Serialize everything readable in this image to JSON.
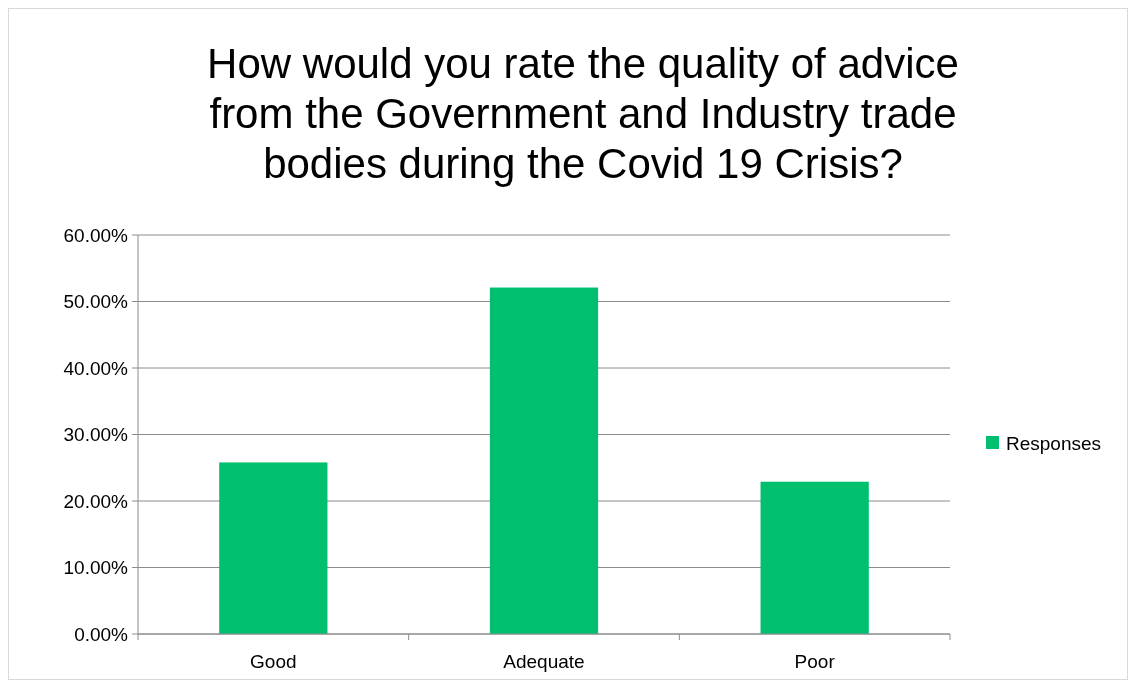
{
  "chart_data": {
    "type": "bar",
    "title": "How would you rate the quality of advice from the Government and Industry trade bodies during the Covid 19 Crisis?",
    "categories": [
      "Good",
      "Adequate",
      "Poor"
    ],
    "series": [
      {
        "name": "Responses",
        "color": "#00bf6f",
        "values": [
          25.8,
          52.1,
          22.9
        ]
      }
    ],
    "ylim": [
      0,
      60
    ],
    "yticks": [
      {
        "value": 0,
        "label": "0.00%"
      },
      {
        "value": 10,
        "label": "10.00%"
      },
      {
        "value": 20,
        "label": "20.00%"
      },
      {
        "value": 30,
        "label": "30.00%"
      },
      {
        "value": 40,
        "label": "40.00%"
      },
      {
        "value": 50,
        "label": "50.00%"
      },
      {
        "value": 60,
        "label": "60.00%"
      }
    ],
    "grid": "y",
    "legend": "right"
  }
}
